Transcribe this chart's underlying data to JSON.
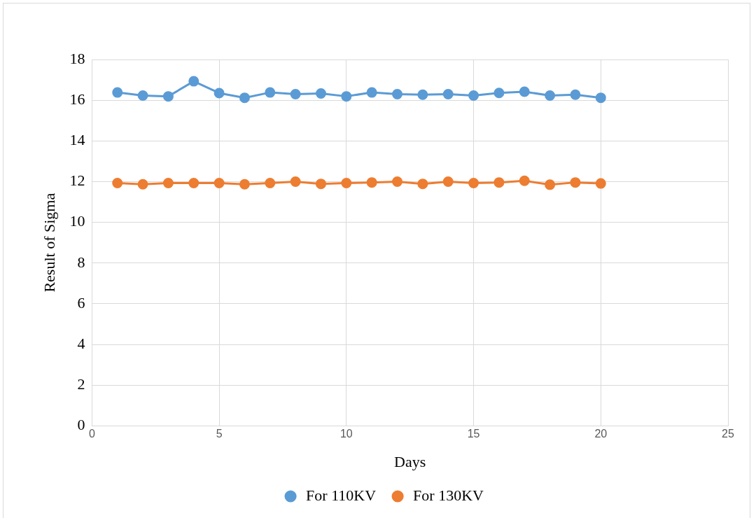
{
  "chart_data": {
    "type": "line",
    "xlabel": "Days",
    "ylabel": "Result of Sigma",
    "x": [
      1,
      2,
      3,
      4,
      5,
      6,
      7,
      8,
      9,
      10,
      11,
      12,
      13,
      14,
      15,
      16,
      17,
      18,
      19,
      20
    ],
    "series": [
      {
        "name": "For 110KV",
        "color": "#5b9bd5",
        "values": [
          16.38,
          16.23,
          16.19,
          16.93,
          16.35,
          16.12,
          16.38,
          16.3,
          16.33,
          16.19,
          16.38,
          16.3,
          16.27,
          16.3,
          16.23,
          16.36,
          16.42,
          16.23,
          16.27,
          16.12
        ]
      },
      {
        "name": "For 130KV",
        "color": "#ed7d31",
        "values": [
          11.93,
          11.87,
          11.93,
          11.93,
          11.93,
          11.87,
          11.93,
          12.0,
          11.89,
          11.93,
          11.96,
          12.0,
          11.89,
          12.0,
          11.93,
          11.96,
          12.04,
          11.85,
          11.96,
          11.91
        ]
      }
    ],
    "xlim": [
      0,
      25
    ],
    "xticks": [
      0,
      5,
      10,
      15,
      20,
      25
    ],
    "ylim": [
      0,
      18
    ],
    "yticks": [
      0,
      2,
      4,
      6,
      8,
      10,
      12,
      14,
      16,
      18
    ],
    "grid": true,
    "legend": "bottom",
    "marker": "circle",
    "line_style": "solid"
  }
}
